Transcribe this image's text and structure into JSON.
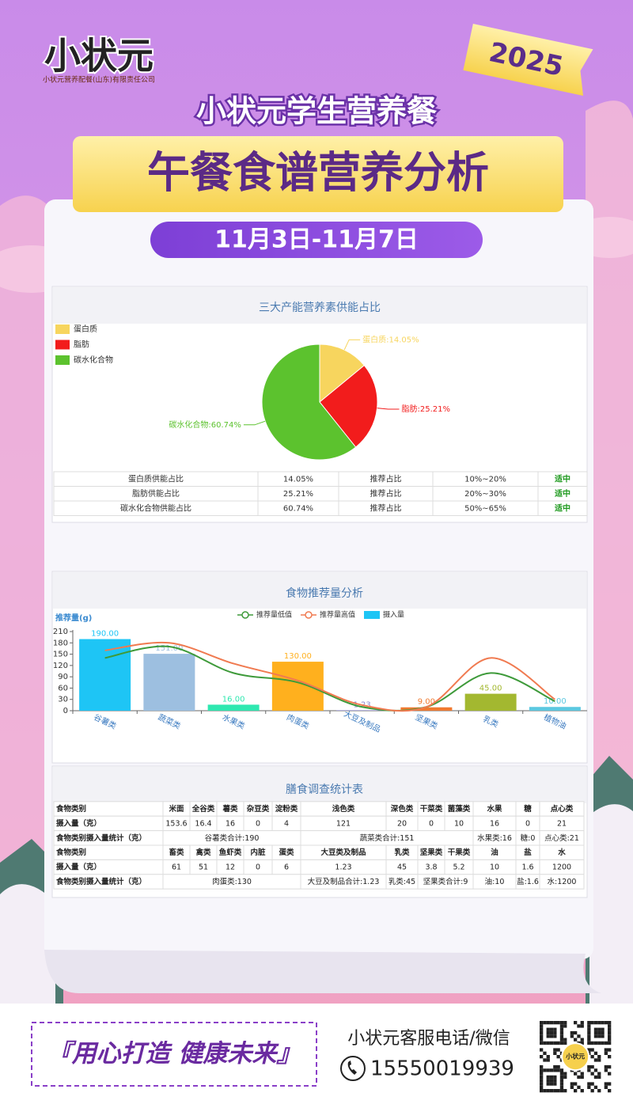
{
  "header": {
    "logo": "小状元",
    "company": "小状元营养配餐(山东)有限责任公司",
    "year": "2025",
    "subtitle": "小状元学生营养餐",
    "title": "午餐食谱营养分析",
    "date_range": "11月3日-11月7日"
  },
  "chart_data": [
    {
      "type": "pie",
      "title": "三大产能营养素供能占比",
      "categories": [
        "蛋白质",
        "脂肪",
        "碳水化合物"
      ],
      "values": [
        14.05,
        25.21,
        60.74
      ],
      "value_labels": [
        "蛋白质:14.05%",
        "脂肪:25.21%",
        "碳水化合物:60.74%"
      ],
      "colors": [
        "#f7d55e",
        "#f21c1c",
        "#5cc22e"
      ],
      "legend": "top-left"
    },
    {
      "type": "bar",
      "title": "食物推荐量分析",
      "y_label": "推荐量(g)",
      "categories": [
        "谷薯类",
        "蔬菜类",
        "水果类",
        "肉蛋类",
        "大豆及制品",
        "坚果类",
        "乳类",
        "植物油"
      ],
      "series": [
        {
          "name": "摄入量",
          "type": "bar",
          "color": "#1ec5f5",
          "colors": [
            "#1ec5f5",
            "#9dbfe0",
            "#2ee8b0",
            "#ffb01e",
            "#8a86d0",
            "#f07a30",
            "#a3b830",
            "#5bc8e0"
          ],
          "values": [
            190,
            151,
            16,
            130,
            1.23,
            9,
            45,
            10
          ],
          "value_labels": [
            "190.00",
            "151.00",
            "16.00",
            "130.00",
            "1.23",
            "9.00",
            "45.00",
            "10.00"
          ]
        },
        {
          "name": "推荐量低值",
          "type": "line",
          "color": "#3e9a3a",
          "values": [
            140,
            170,
            100,
            75,
            10,
            10,
            100,
            25
          ]
        },
        {
          "name": "推荐量高值",
          "type": "line",
          "color": "#f07a50",
          "values": [
            160,
            180,
            125,
            80,
            15,
            10,
            140,
            30
          ]
        }
      ],
      "ylim": [
        0,
        210
      ],
      "yticks": [
        0,
        30,
        60,
        90,
        120,
        150,
        180,
        210
      ],
      "grid": false,
      "legend": "top"
    }
  ],
  "ratio_table": {
    "rows": [
      [
        "蛋白质供能占比",
        "14.05%",
        "推荐占比",
        "10%~20%",
        "适中"
      ],
      [
        "脂肪供能占比",
        "25.21%",
        "推荐占比",
        "20%~30%",
        "适中"
      ],
      [
        "碳水化合物供能占比",
        "60.74%",
        "推荐占比",
        "50%~65%",
        "适中"
      ]
    ]
  },
  "survey_table": {
    "title": "膳食调查统计表",
    "rows": [
      [
        "食物类别",
        "米面",
        "全谷类",
        "薯类",
        "杂豆类",
        "淀粉类",
        "浅色类",
        "深色类",
        "干菜类",
        "菌藻类",
        "水果",
        "糖",
        "点心类"
      ],
      [
        "摄入量（克）",
        "153.6",
        "16.4",
        "16",
        "0",
        "4",
        "121",
        "20",
        "0",
        "10",
        "16",
        "0",
        "21"
      ],
      [
        "食物类别摄入量统计（克）",
        "谷薯类合计:190",
        "蔬菜类合计:151",
        "水果类:16",
        "糖:0",
        "点心类:21"
      ],
      [
        "食物类别",
        "畜类",
        "禽类",
        "鱼虾类",
        "内脏",
        "蛋类",
        "大豆类及制品",
        "乳类",
        "坚果类",
        "干果类",
        "油",
        "盐",
        "水"
      ],
      [
        "摄入量（克）",
        "61",
        "51",
        "12",
        "0",
        "6",
        "1.23",
        "45",
        "3.8",
        "5.2",
        "10",
        "1.6",
        "1200"
      ],
      [
        "食物类别摄入量统计（克）",
        "肉蛋类:130",
        "大豆及制品合计:1.23",
        "乳类:45",
        "坚果类合计:9",
        "油:10",
        "盐:1.6",
        "水:1200"
      ]
    ]
  },
  "footer": {
    "slogan": "『用心打造 健康未来』",
    "contact_label": "小状元客服电话/微信",
    "phone": "15550019939",
    "qr_label": "小状元"
  }
}
